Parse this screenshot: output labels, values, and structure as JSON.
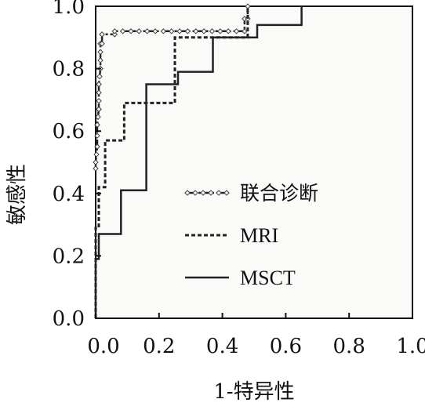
{
  "chart_data": {
    "type": "line",
    "xlabel": "1-特异性",
    "ylabel": "敏感性",
    "xlim": [
      0.0,
      1.0
    ],
    "ylim": [
      0.0,
      1.0
    ],
    "x_ticks": [
      0.0,
      0.2,
      0.4,
      0.6,
      0.8,
      1.0
    ],
    "y_ticks": [
      0.0,
      0.2,
      0.4,
      0.6,
      0.8,
      1.0
    ],
    "x_tick_labels": [
      "0.0",
      "0.2",
      "0.4",
      "0.6",
      "0.8",
      "1.0"
    ],
    "y_tick_labels": [
      "0.0",
      "0.2",
      "0.4",
      "0.6",
      "0.8",
      "1.0"
    ],
    "grid": false,
    "legend_position": "center",
    "series": [
      {
        "name": "联合诊断",
        "style": "dash-dot-marker",
        "color": "#222222",
        "points": [
          [
            0.0,
            0.48
          ],
          [
            0.0,
            0.5
          ],
          [
            0.005,
            0.55
          ],
          [
            0.005,
            0.62
          ],
          [
            0.01,
            0.67
          ],
          [
            0.01,
            0.75
          ],
          [
            0.015,
            0.8
          ],
          [
            0.015,
            0.88
          ],
          [
            0.02,
            0.88
          ],
          [
            0.02,
            0.91
          ],
          [
            0.06,
            0.91
          ],
          [
            0.06,
            0.92
          ],
          [
            0.47,
            0.92
          ],
          [
            0.47,
            0.96
          ],
          [
            0.48,
            0.96
          ],
          [
            0.48,
            1.0
          ]
        ]
      },
      {
        "name": "MRI",
        "style": "dotted",
        "color": "#222222",
        "points": [
          [
            0.0,
            0.0
          ],
          [
            0.0,
            0.29
          ],
          [
            0.01,
            0.29
          ],
          [
            0.01,
            0.42
          ],
          [
            0.03,
            0.42
          ],
          [
            0.03,
            0.57
          ],
          [
            0.09,
            0.57
          ],
          [
            0.09,
            0.69
          ],
          [
            0.25,
            0.69
          ],
          [
            0.25,
            0.9
          ],
          [
            0.48,
            0.9
          ],
          [
            0.48,
            1.0
          ]
        ]
      },
      {
        "name": "MSCT",
        "style": "solid",
        "color": "#222222",
        "points": [
          [
            0.0,
            0.0
          ],
          [
            0.0,
            0.19
          ],
          [
            0.01,
            0.19
          ],
          [
            0.01,
            0.27
          ],
          [
            0.08,
            0.27
          ],
          [
            0.08,
            0.41
          ],
          [
            0.16,
            0.41
          ],
          [
            0.16,
            0.75
          ],
          [
            0.26,
            0.75
          ],
          [
            0.26,
            0.79
          ],
          [
            0.29,
            0.79
          ],
          [
            0.29,
            0.79
          ],
          [
            0.37,
            0.79
          ],
          [
            0.37,
            0.9
          ],
          [
            0.51,
            0.9
          ],
          [
            0.51,
            0.94
          ],
          [
            0.65,
            0.94
          ],
          [
            0.65,
            1.0
          ]
        ]
      }
    ]
  }
}
